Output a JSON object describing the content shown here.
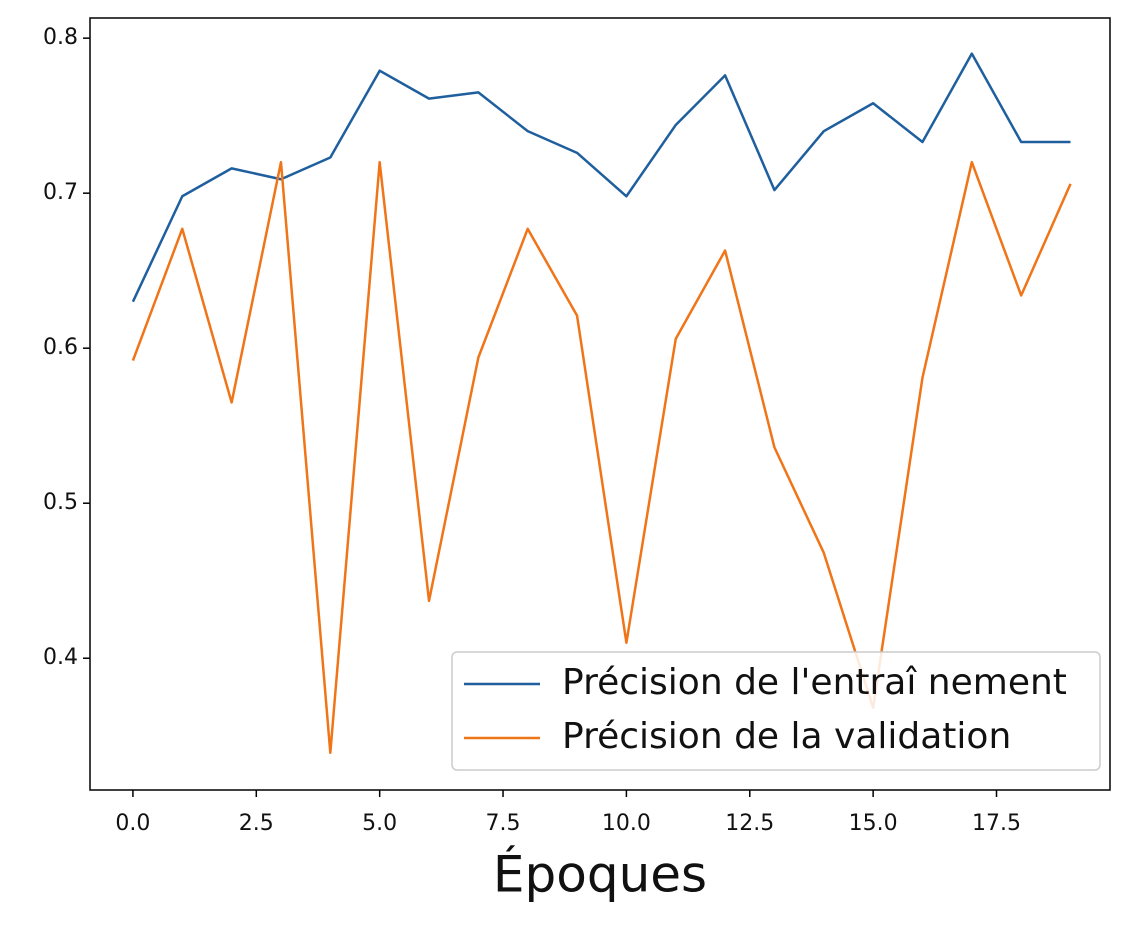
{
  "chart_data": {
    "type": "line",
    "xlabel": "Époques",
    "x": [
      0,
      1,
      2,
      3,
      4,
      5,
      6,
      7,
      8,
      9,
      10,
      11,
      12,
      13,
      14,
      15,
      16,
      17,
      18,
      19
    ],
    "series": [
      {
        "name": "Précision de l'entraî nement",
        "color": "#1f5f9e",
        "values": [
          0.63,
          0.698,
          0.716,
          0.709,
          0.723,
          0.779,
          0.761,
          0.765,
          0.74,
          0.726,
          0.698,
          0.744,
          0.776,
          0.702,
          0.74,
          0.758,
          0.733,
          0.79,
          0.733,
          0.733
        ]
      },
      {
        "name": "Précision de la validation",
        "color": "#f07418",
        "values": [
          0.592,
          0.677,
          0.565,
          0.72,
          0.339,
          0.72,
          0.437,
          0.594,
          0.677,
          0.621,
          0.41,
          0.606,
          0.663,
          0.536,
          0.468,
          0.368,
          0.581,
          0.72,
          0.634,
          0.706
        ]
      }
    ],
    "xlim": [
      -0.87,
      19.8
    ],
    "ylim": [
      0.315,
      0.813
    ],
    "xticks": [
      {
        "value": 0,
        "label": "0.0"
      },
      {
        "value": 2.5,
        "label": "2.5"
      },
      {
        "value": 5,
        "label": "5.0"
      },
      {
        "value": 7.5,
        "label": "7.5"
      },
      {
        "value": 10,
        "label": "10.0"
      },
      {
        "value": 12.5,
        "label": "12.5"
      },
      {
        "value": 15,
        "label": "15.0"
      },
      {
        "value": 17.5,
        "label": "17.5"
      }
    ],
    "yticks": [
      0.4,
      0.5,
      0.6,
      0.7,
      0.8
    ],
    "legend": "lower right"
  }
}
